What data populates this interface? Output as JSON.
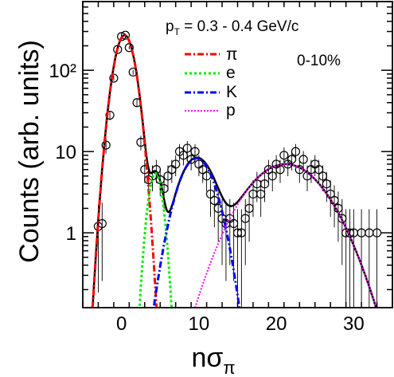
{
  "chart_data": {
    "type": "scatter",
    "title": "",
    "header_text": {
      "p": "p",
      "sub": "T",
      "rest": " = 0.3 - 0.4 GeV/c"
    },
    "centrality_label": "0-10%",
    "xlabel": {
      "main": "nσ",
      "sub": "π"
    },
    "ylabel": "Counts (arb. units)",
    "xlim": [
      -5,
      35
    ],
    "ylim": [
      0.12,
      700
    ],
    "yscale": "log",
    "x_ticks": [
      0,
      10,
      20,
      30
    ],
    "x_tick_labels": [
      "0",
      "10",
      "20",
      "30"
    ],
    "y_ticks": [
      1,
      10,
      100
    ],
    "y_tick_labels": [
      "1",
      "10",
      "10²"
    ],
    "legend_position": "top-center",
    "legend": [
      {
        "name": "π",
        "color": "#ff0000",
        "dash": "dash-dot"
      },
      {
        "name": "e",
        "color": "#00ee00",
        "dash": "dotted"
      },
      {
        "name": "K",
        "color": "#0000ff",
        "dash": "dash-dot"
      },
      {
        "name": "p",
        "color": "#ff00ff",
        "dash": "dotted"
      }
    ],
    "total_fit_color": "#000000",
    "components": [
      {
        "name": "π",
        "amplitude": 270,
        "mean": 0.4,
        "sigma": 1.05
      },
      {
        "name": "e",
        "amplitude": 5.4,
        "mean": 4.4,
        "sigma": 0.75
      },
      {
        "name": "K",
        "amplitude": 8.3,
        "mean": 9.7,
        "sigma": 1.9
      },
      {
        "name": "p",
        "amplitude": 7.0,
        "mean": 21.2,
        "sigma": 4.1
      }
    ],
    "data_points": {
      "x": [
        -3,
        -2.5,
        -2,
        -1.5,
        -1,
        -0.5,
        0,
        0.5,
        1,
        1.5,
        2,
        2.5,
        3,
        3.5,
        4,
        4.5,
        5,
        5.5,
        6,
        6.5,
        7,
        7.5,
        8,
        8.5,
        9,
        9.5,
        10,
        10.5,
        11,
        11.5,
        12,
        12.5,
        13,
        13.5,
        14,
        14.5,
        15,
        15.5,
        16,
        16.5,
        17,
        17.5,
        18,
        18.5,
        19,
        19.5,
        20,
        20.5,
        21,
        21.5,
        22,
        22.5,
        23,
        23.5,
        24,
        24.5,
        25,
        25.5,
        26,
        26.5,
        27,
        27.5,
        28,
        28.5,
        29,
        29.5,
        30,
        31,
        32,
        33
      ],
      "y": [
        1.2,
        1.3,
        12,
        28,
        80,
        180,
        260,
        270,
        190,
        95,
        40,
        13,
        6,
        4.5,
        5,
        6,
        4.5,
        3.5,
        5,
        6,
        7,
        10,
        9,
        11,
        8,
        10,
        7,
        6,
        5,
        3,
        2.5,
        2,
        1.5,
        1.3,
        1.5,
        1.3,
        1,
        1,
        1.5,
        2,
        3,
        4,
        3,
        4,
        6,
        5,
        7,
        6,
        9,
        7,
        8,
        10,
        6,
        8,
        5,
        6,
        7,
        6,
        5,
        4,
        3,
        2.5,
        2,
        1.5,
        1,
        1,
        1,
        1,
        1,
        1
      ]
    }
  }
}
